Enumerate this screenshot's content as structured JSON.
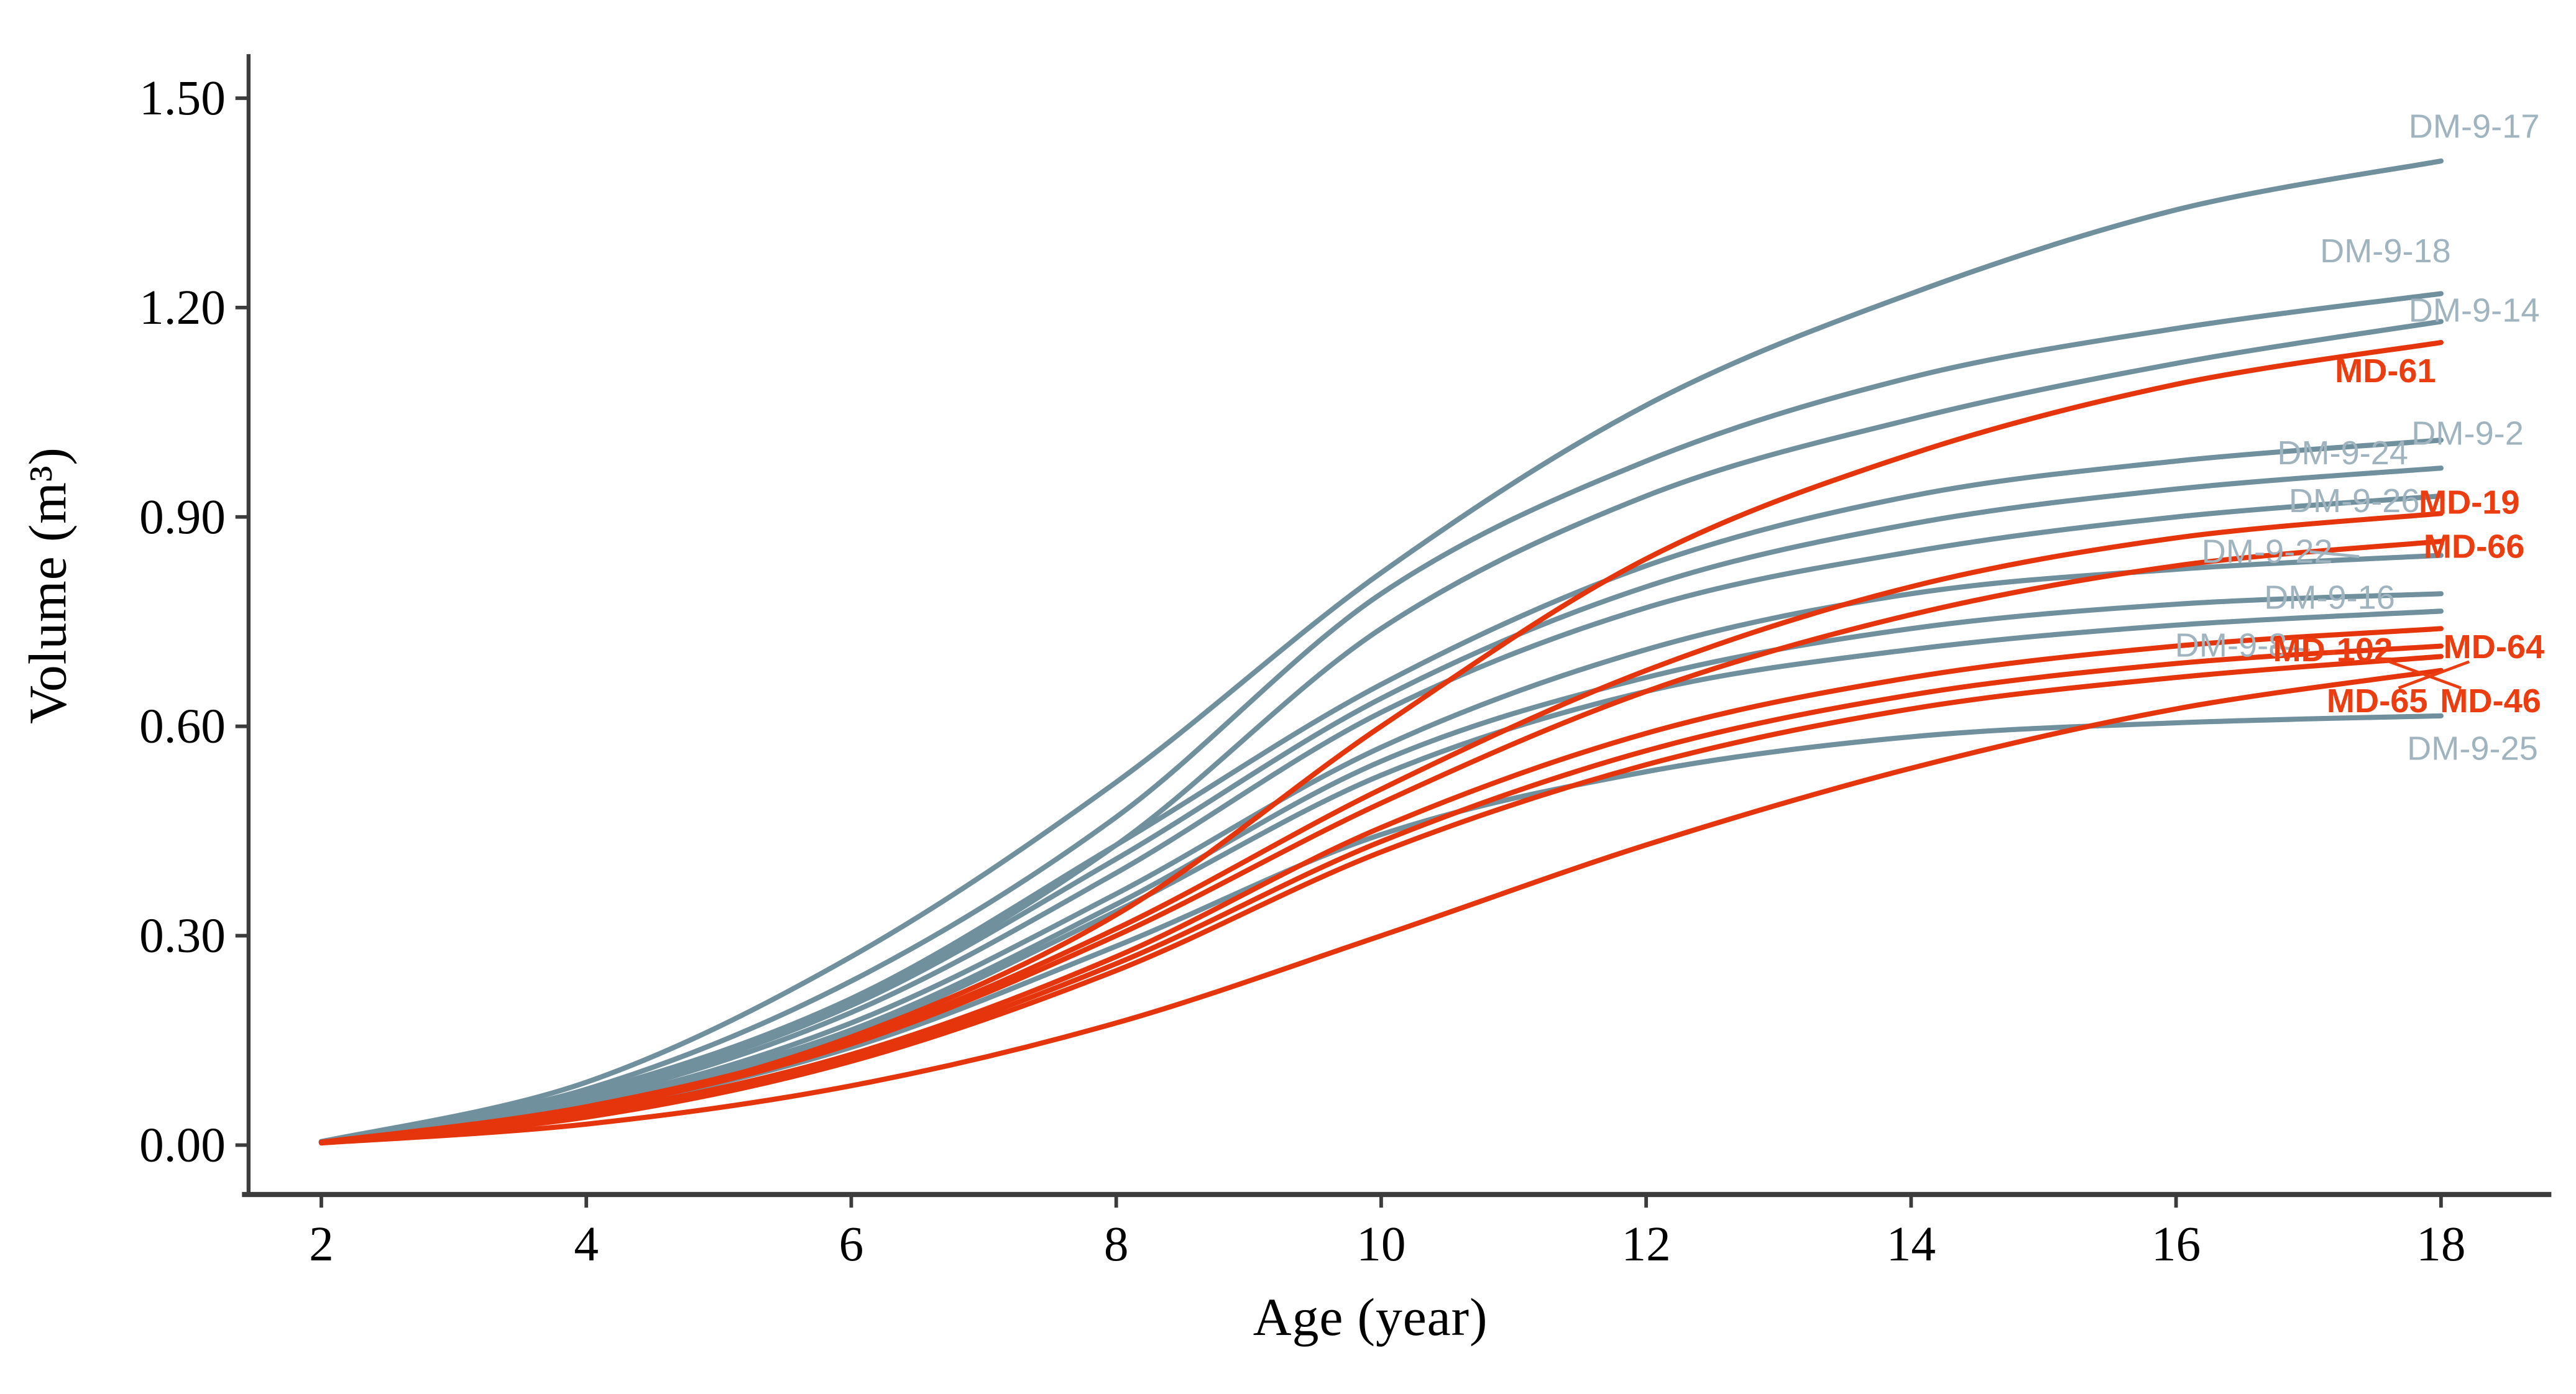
{
  "chart_data": {
    "type": "line",
    "title": "",
    "xlabel": "Age (year)",
    "ylabel": "Volume (m³)",
    "x": [
      2,
      4,
      6,
      8,
      10,
      12,
      14,
      16,
      18
    ],
    "x_ticks": [
      "2",
      "4",
      "6",
      "8",
      "10",
      "12",
      "14",
      "16",
      "18"
    ],
    "y_ticks": {
      "labels": [
        "0.00",
        "0.30",
        "0.60",
        "0.90",
        "1.20",
        "1.50"
      ],
      "values": [
        0.0,
        0.3,
        0.6,
        0.9,
        1.2,
        1.5
      ]
    },
    "xlim": [
      2,
      18
    ],
    "ylim": [
      0,
      1.5
    ],
    "grid": "off",
    "legend": "labels-at-line-ends",
    "colors": {
      "dm_line": "#70909E",
      "dm_label": "#9FB4BF",
      "md_line": "#E5350C",
      "md_label": "#EC3D10",
      "axis": "#3C3C3C",
      "tick_text": "#000000"
    },
    "series": [
      {
        "name": "DM-9-17",
        "group": "DM",
        "values": [
          0.005,
          0.09,
          0.27,
          0.52,
          0.82,
          1.06,
          1.22,
          1.34,
          1.41
        ],
        "label": {
          "x": 1506,
          "y": 77
        }
      },
      {
        "name": "DM-9-18",
        "group": "DM",
        "values": [
          0.005,
          0.08,
          0.235,
          0.47,
          0.79,
          0.98,
          1.1,
          1.17,
          1.22
        ],
        "label": {
          "x": 1452,
          "y": 153
        }
      },
      {
        "name": "DM-9-14",
        "group": "DM",
        "values": [
          0.005,
          0.07,
          0.205,
          0.43,
          0.74,
          0.93,
          1.04,
          1.12,
          1.18
        ],
        "label": {
          "x": 1506,
          "y": 189
        }
      },
      {
        "name": "MD-61",
        "group": "MD",
        "values": [
          0.004,
          0.05,
          0.155,
          0.33,
          0.6,
          0.84,
          0.99,
          1.09,
          1.15
        ],
        "label": {
          "x": 1452,
          "y": 226
        }
      },
      {
        "name": "DM-9-2",
        "group": "DM",
        "values": [
          0.005,
          0.075,
          0.21,
          0.43,
          0.66,
          0.83,
          0.93,
          0.98,
          1.01
        ],
        "label": {
          "x": 1502,
          "y": 264
        }
      },
      {
        "name": "DM-9-24",
        "group": "DM",
        "values": [
          0.005,
          0.07,
          0.2,
          0.41,
          0.64,
          0.8,
          0.89,
          0.94,
          0.97
        ],
        "label": {
          "x": 1426,
          "y": 276
        }
      },
      {
        "name": "DM-9-26",
        "group": "DM",
        "values": [
          0.005,
          0.065,
          0.19,
          0.39,
          0.62,
          0.77,
          0.85,
          0.9,
          0.93
        ],
        "label": {
          "x": 1433,
          "y": 305
        }
      },
      {
        "name": "MD-19",
        "group": "MD",
        "values": [
          0.004,
          0.055,
          0.15,
          0.31,
          0.51,
          0.68,
          0.8,
          0.87,
          0.905
        ],
        "label": {
          "x": 1503,
          "y": 306
        }
      },
      {
        "name": "MD-66",
        "group": "MD",
        "values": [
          0.004,
          0.05,
          0.145,
          0.3,
          0.49,
          0.65,
          0.76,
          0.83,
          0.865
        ],
        "label": {
          "x": 1506,
          "y": 333
        }
      },
      {
        "name": "DM-9-22",
        "group": "DM",
        "values": [
          0.005,
          0.06,
          0.175,
          0.36,
          0.57,
          0.71,
          0.79,
          0.825,
          0.845
        ],
        "label": {
          "x": 1380,
          "y": 336
        }
      },
      {
        "name": "DM-9-16",
        "group": "DM",
        "values": [
          0.005,
          0.06,
          0.165,
          0.345,
          0.55,
          0.67,
          0.74,
          0.775,
          0.79
        ],
        "label": {
          "x": 1418,
          "y": 364
        }
      },
      {
        "name": "DM-9-8",
        "group": "DM",
        "values": [
          0.005,
          0.055,
          0.16,
          0.335,
          0.53,
          0.65,
          0.71,
          0.745,
          0.765
        ],
        "label": {
          "x": 1358,
          "y": 393
        }
      },
      {
        "name": "MD-102",
        "group": "MD",
        "values": [
          0.004,
          0.045,
          0.13,
          0.27,
          0.455,
          0.59,
          0.67,
          0.715,
          0.74
        ],
        "label": {
          "x": 1420,
          "y": 396
        }
      },
      {
        "name": "MD-64",
        "group": "MD",
        "values": [
          0.004,
          0.045,
          0.125,
          0.26,
          0.435,
          0.565,
          0.645,
          0.69,
          0.715
        ],
        "label": {
          "x": 1518,
          "y": 394
        }
      },
      {
        "name": "MD-65",
        "group": "MD",
        "values": [
          0.004,
          0.04,
          0.12,
          0.25,
          0.42,
          0.545,
          0.625,
          0.67,
          0.7
        ],
        "label": {
          "x": 1447,
          "y": 427
        }
      },
      {
        "name": "MD-46",
        "group": "MD",
        "values": [
          0.003,
          0.03,
          0.085,
          0.175,
          0.3,
          0.43,
          0.54,
          0.625,
          0.68
        ],
        "label": {
          "x": 1516,
          "y": 427
        }
      },
      {
        "name": "DM-9-25",
        "group": "DM",
        "values": [
          0.005,
          0.05,
          0.14,
          0.285,
          0.445,
          0.535,
          0.585,
          0.605,
          0.615
        ],
        "label": {
          "x": 1505,
          "y": 456
        }
      }
    ],
    "leaders": [
      {
        "color": "dm",
        "points": [
          1406,
          336,
          1436,
          339
        ]
      },
      {
        "color": "dm",
        "points": [
          1382,
          394,
          1406,
          396
        ]
      },
      {
        "color": "md",
        "points": [
          1449,
          401,
          1498,
          419
        ]
      },
      {
        "color": "md",
        "points": [
          1503,
          403,
          1460,
          419
        ]
      }
    ]
  }
}
